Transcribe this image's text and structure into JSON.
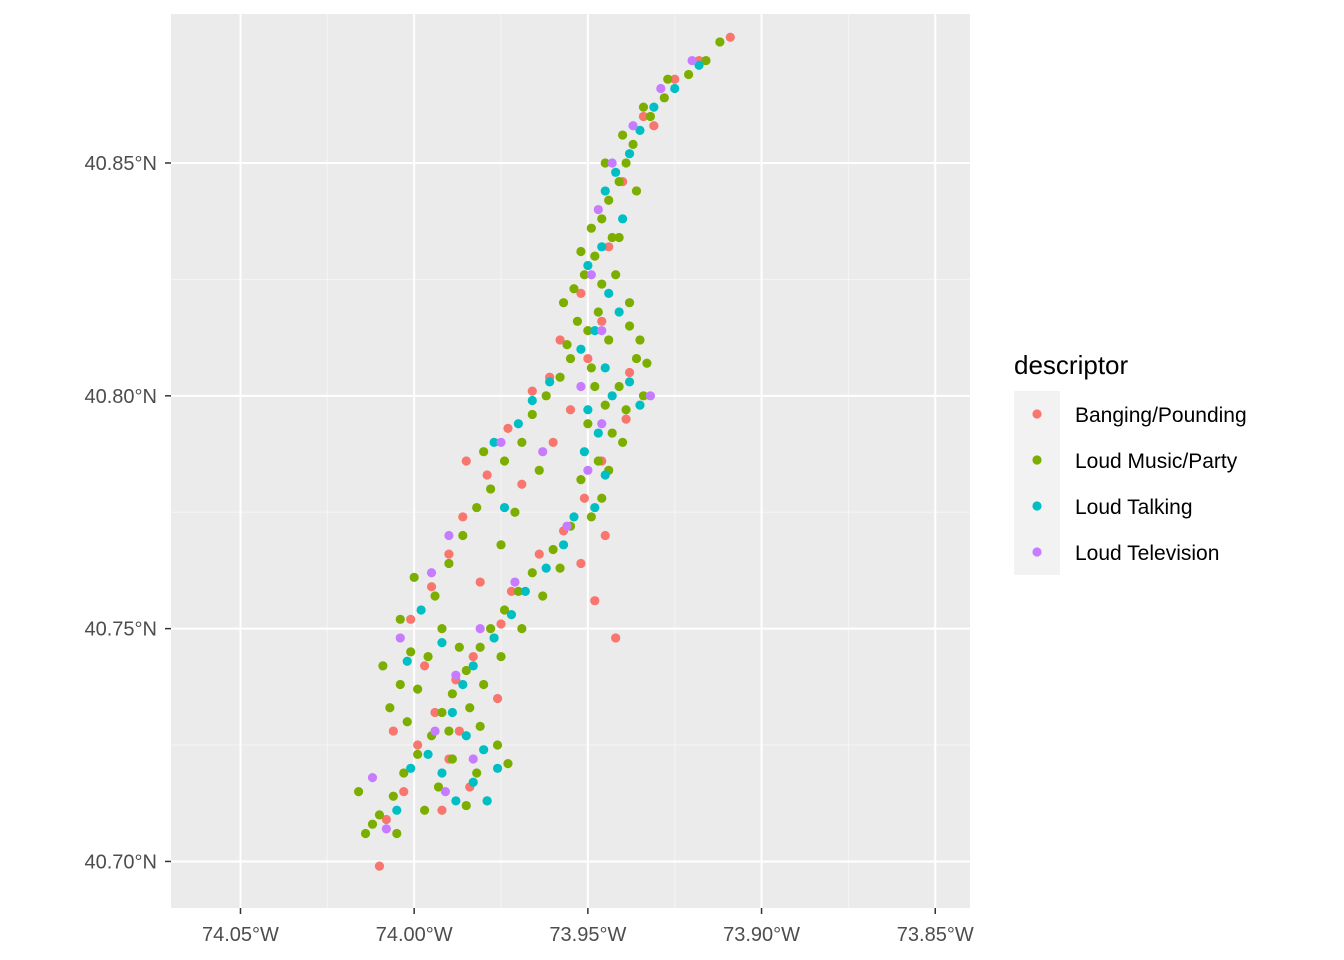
{
  "chart_data": {
    "type": "scatter",
    "title": "",
    "xlabel": "",
    "ylabel": "",
    "xlim": [
      -74.07,
      -73.84
    ],
    "ylim": [
      40.69,
      40.882
    ],
    "x_ticks": [
      {
        "value": -74.05,
        "label": "74.05°W"
      },
      {
        "value": -74.0,
        "label": "74.00°W"
      },
      {
        "value": -73.95,
        "label": "73.95°W"
      },
      {
        "value": -73.9,
        "label": "73.90°W"
      },
      {
        "value": -73.85,
        "label": "73.85°W"
      }
    ],
    "y_ticks": [
      {
        "value": 40.7,
        "label": "40.70°N"
      },
      {
        "value": 40.75,
        "label": "40.75°N"
      },
      {
        "value": 40.8,
        "label": "40.80°N"
      },
      {
        "value": 40.85,
        "label": "40.85°N"
      }
    ],
    "grid": true,
    "legend": {
      "title": "descriptor",
      "position": "right",
      "entries": [
        {
          "label": "Banging/Pounding",
          "color": "#F8766D"
        },
        {
          "label": "Loud Music/Party",
          "color": "#7CAE00"
        },
        {
          "label": "Loud Talking",
          "color": "#00BFC4"
        },
        {
          "label": "Loud Television",
          "color": "#C77CFF"
        }
      ]
    },
    "series": [
      {
        "name": "Banging/Pounding",
        "color": "#F8766D",
        "points": [
          [
            -73.909,
            40.877
          ],
          [
            -73.925,
            40.868
          ],
          [
            -73.934,
            40.86
          ],
          [
            -73.94,
            40.846
          ],
          [
            -73.944,
            40.832
          ],
          [
            -73.952,
            40.822
          ],
          [
            -73.946,
            40.816
          ],
          [
            -73.95,
            40.808
          ],
          [
            -73.958,
            40.812
          ],
          [
            -73.961,
            40.804
          ],
          [
            -73.955,
            40.797
          ],
          [
            -73.939,
            40.795
          ],
          [
            -73.946,
            40.786
          ],
          [
            -73.951,
            40.778
          ],
          [
            -73.945,
            40.77
          ],
          [
            -73.952,
            40.764
          ],
          [
            -73.957,
            40.771
          ],
          [
            -73.964,
            40.766
          ],
          [
            -73.972,
            40.758
          ],
          [
            -73.975,
            40.751
          ],
          [
            -73.983,
            40.744
          ],
          [
            -73.988,
            40.739
          ],
          [
            -73.994,
            40.732
          ],
          [
            -73.999,
            40.725
          ],
          [
            -73.99,
            40.722
          ],
          [
            -73.984,
            40.716
          ],
          [
            -73.992,
            40.711
          ],
          [
            -74.003,
            40.715
          ],
          [
            -74.008,
            40.709
          ],
          [
            -74.01,
            40.699
          ],
          [
            -73.979,
            40.783
          ],
          [
            -73.986,
            40.774
          ],
          [
            -73.99,
            40.766
          ],
          [
            -73.995,
            40.759
          ],
          [
            -74.001,
            40.752
          ],
          [
            -73.973,
            40.793
          ],
          [
            -73.966,
            40.801
          ],
          [
            -73.985,
            40.786
          ],
          [
            -73.948,
            40.756
          ],
          [
            -73.942,
            40.748
          ],
          [
            -73.987,
            40.728
          ],
          [
            -73.976,
            40.735
          ],
          [
            -73.997,
            40.742
          ],
          [
            -73.969,
            40.781
          ],
          [
            -73.938,
            40.805
          ],
          [
            -73.931,
            40.858
          ],
          [
            -73.918,
            40.872
          ],
          [
            -74.006,
            40.728
          ],
          [
            -73.981,
            40.76
          ],
          [
            -73.96,
            40.79
          ]
        ]
      },
      {
        "name": "Loud Music/Party",
        "color": "#7CAE00",
        "points": [
          [
            -73.912,
            40.876
          ],
          [
            -73.916,
            40.872
          ],
          [
            -73.921,
            40.869
          ],
          [
            -73.928,
            40.864
          ],
          [
            -73.932,
            40.86
          ],
          [
            -73.937,
            40.854
          ],
          [
            -73.939,
            40.85
          ],
          [
            -73.941,
            40.846
          ],
          [
            -73.944,
            40.842
          ],
          [
            -73.946,
            40.838
          ],
          [
            -73.943,
            40.834
          ],
          [
            -73.948,
            40.83
          ],
          [
            -73.951,
            40.826
          ],
          [
            -73.942,
            40.826
          ],
          [
            -73.938,
            40.82
          ],
          [
            -73.947,
            40.818
          ],
          [
            -73.953,
            40.816
          ],
          [
            -73.957,
            40.82
          ],
          [
            -73.944,
            40.812
          ],
          [
            -73.936,
            40.808
          ],
          [
            -73.949,
            40.806
          ],
          [
            -73.955,
            40.808
          ],
          [
            -73.941,
            40.802
          ],
          [
            -73.934,
            40.8
          ],
          [
            -73.945,
            40.798
          ],
          [
            -73.95,
            40.794
          ],
          [
            -73.94,
            40.79
          ],
          [
            -73.947,
            40.786
          ],
          [
            -73.952,
            40.782
          ],
          [
            -73.946,
            40.778
          ],
          [
            -73.949,
            40.774
          ],
          [
            -73.955,
            40.772
          ],
          [
            -73.96,
            40.767
          ],
          [
            -73.966,
            40.762
          ],
          [
            -73.97,
            40.758
          ],
          [
            -73.974,
            40.754
          ],
          [
            -73.978,
            40.75
          ],
          [
            -73.981,
            40.746
          ],
          [
            -73.985,
            40.741
          ],
          [
            -73.989,
            40.736
          ],
          [
            -73.992,
            40.732
          ],
          [
            -73.995,
            40.727
          ],
          [
            -73.999,
            40.723
          ],
          [
            -74.003,
            40.719
          ],
          [
            -74.006,
            40.714
          ],
          [
            -74.01,
            40.71
          ],
          [
            -74.014,
            40.706
          ],
          [
            -74.016,
            40.715
          ],
          [
            -74.012,
            40.708
          ],
          [
            -74.005,
            40.706
          ],
          [
            -73.989,
            40.722
          ],
          [
            -73.982,
            40.719
          ],
          [
            -73.976,
            40.725
          ],
          [
            -73.979,
            40.713
          ],
          [
            -73.985,
            40.712
          ],
          [
            -73.993,
            40.716
          ],
          [
            -73.99,
            40.728
          ],
          [
            -73.981,
            40.729
          ],
          [
            -73.973,
            40.721
          ],
          [
            -73.997,
            40.711
          ],
          [
            -74.002,
            40.73
          ],
          [
            -74.004,
            40.738
          ],
          [
            -74.001,
            40.745
          ],
          [
            -74.004,
            40.752
          ],
          [
            -74.0,
            40.761
          ],
          [
            -73.994,
            40.757
          ],
          [
            -73.99,
            40.764
          ],
          [
            -73.986,
            40.77
          ],
          [
            -73.982,
            40.776
          ],
          [
            -73.978,
            40.78
          ],
          [
            -73.974,
            40.786
          ],
          [
            -73.969,
            40.79
          ],
          [
            -73.966,
            40.796
          ],
          [
            -73.962,
            40.8
          ],
          [
            -73.958,
            40.804
          ],
          [
            -73.956,
            40.811
          ],
          [
            -73.954,
            40.823
          ],
          [
            -73.952,
            40.831
          ],
          [
            -73.949,
            40.836
          ],
          [
            -73.938,
            40.815
          ],
          [
            -73.933,
            40.807
          ],
          [
            -73.939,
            40.797
          ],
          [
            -73.943,
            40.792
          ],
          [
            -73.944,
            40.784
          ],
          [
            -73.958,
            40.763
          ],
          [
            -73.963,
            40.757
          ],
          [
            -73.969,
            40.75
          ],
          [
            -73.975,
            40.744
          ],
          [
            -73.98,
            40.738
          ],
          [
            -73.984,
            40.733
          ],
          [
            -73.987,
            40.746
          ],
          [
            -73.992,
            40.75
          ],
          [
            -73.996,
            40.744
          ],
          [
            -73.999,
            40.737
          ],
          [
            -74.007,
            40.733
          ],
          [
            -74.009,
            40.742
          ],
          [
            -73.975,
            40.768
          ],
          [
            -73.971,
            40.775
          ],
          [
            -73.98,
            40.788
          ],
          [
            -73.964,
            40.784
          ],
          [
            -73.927,
            40.868
          ],
          [
            -73.934,
            40.862
          ],
          [
            -73.94,
            40.856
          ],
          [
            -73.945,
            40.85
          ],
          [
            -73.936,
            40.844
          ],
          [
            -73.941,
            40.834
          ],
          [
            -73.946,
            40.824
          ],
          [
            -73.95,
            40.814
          ],
          [
            -73.935,
            40.812
          ],
          [
            -73.948,
            40.802
          ]
        ]
      },
      {
        "name": "Loud Talking",
        "color": "#00BFC4",
        "points": [
          [
            -73.918,
            40.871
          ],
          [
            -73.925,
            40.866
          ],
          [
            -73.931,
            40.862
          ],
          [
            -73.935,
            40.857
          ],
          [
            -73.938,
            40.852
          ],
          [
            -73.942,
            40.848
          ],
          [
            -73.945,
            40.844
          ],
          [
            -73.94,
            40.838
          ],
          [
            -73.946,
            40.832
          ],
          [
            -73.95,
            40.828
          ],
          [
            -73.944,
            40.822
          ],
          [
            -73.941,
            40.818
          ],
          [
            -73.948,
            40.814
          ],
          [
            -73.952,
            40.81
          ],
          [
            -73.945,
            40.806
          ],
          [
            -73.938,
            40.803
          ],
          [
            -73.943,
            40.8
          ],
          [
            -73.95,
            40.797
          ],
          [
            -73.935,
            40.798
          ],
          [
            -73.947,
            40.792
          ],
          [
            -73.951,
            40.788
          ],
          [
            -73.945,
            40.783
          ],
          [
            -73.948,
            40.776
          ],
          [
            -73.954,
            40.774
          ],
          [
            -73.957,
            40.768
          ],
          [
            -73.962,
            40.763
          ],
          [
            -73.968,
            40.758
          ],
          [
            -73.972,
            40.753
          ],
          [
            -73.977,
            40.748
          ],
          [
            -73.983,
            40.742
          ],
          [
            -73.986,
            40.738
          ],
          [
            -73.989,
            40.732
          ],
          [
            -73.985,
            40.727
          ],
          [
            -73.98,
            40.724
          ],
          [
            -73.976,
            40.72
          ],
          [
            -73.983,
            40.717
          ],
          [
            -73.988,
            40.713
          ],
          [
            -73.979,
            40.713
          ],
          [
            -73.992,
            40.719
          ],
          [
            -73.996,
            40.723
          ],
          [
            -74.001,
            40.72
          ],
          [
            -74.005,
            40.711
          ],
          [
            -73.97,
            40.794
          ],
          [
            -73.977,
            40.79
          ],
          [
            -73.974,
            40.776
          ],
          [
            -73.966,
            40.799
          ],
          [
            -73.961,
            40.803
          ],
          [
            -74.002,
            40.743
          ],
          [
            -73.992,
            40.747
          ],
          [
            -73.998,
            40.754
          ]
        ]
      },
      {
        "name": "Loud Television",
        "color": "#C77CFF",
        "points": [
          [
            -73.92,
            40.872
          ],
          [
            -73.929,
            40.866
          ],
          [
            -73.937,
            40.858
          ],
          [
            -73.943,
            40.85
          ],
          [
            -73.947,
            40.84
          ],
          [
            -73.949,
            40.826
          ],
          [
            -73.946,
            40.814
          ],
          [
            -73.952,
            40.802
          ],
          [
            -73.932,
            40.8
          ],
          [
            -73.946,
            40.794
          ],
          [
            -73.95,
            40.784
          ],
          [
            -73.956,
            40.772
          ],
          [
            -73.971,
            40.76
          ],
          [
            -73.981,
            40.75
          ],
          [
            -73.988,
            40.74
          ],
          [
            -73.994,
            40.728
          ],
          [
            -73.983,
            40.722
          ],
          [
            -73.991,
            40.715
          ],
          [
            -74.012,
            40.718
          ],
          [
            -74.008,
            40.707
          ],
          [
            -73.99,
            40.77
          ],
          [
            -73.995,
            40.762
          ],
          [
            -74.004,
            40.748
          ],
          [
            -73.975,
            40.79
          ],
          [
            -73.963,
            40.788
          ]
        ]
      }
    ]
  }
}
